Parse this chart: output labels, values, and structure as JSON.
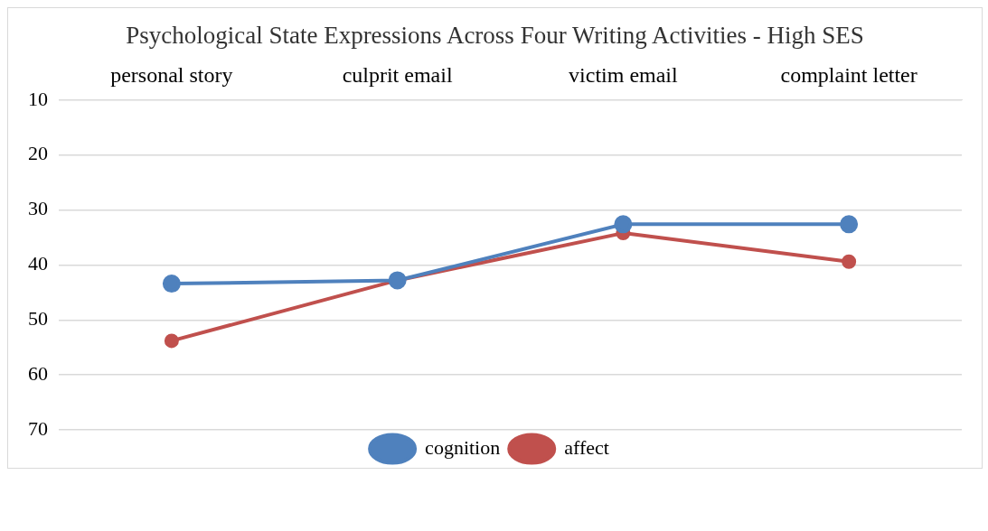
{
  "chart_data": {
    "type": "line",
    "title": "Psychological State Expressions Across Four Writing Activities - High SES",
    "categories": [
      "personal story",
      "culprit email",
      "victim email",
      "complaint letter"
    ],
    "series": [
      {
        "name": "cognition",
        "color": "#4f81bd",
        "values": [
          43.4,
          42.8,
          32.6,
          32.6
        ]
      },
      {
        "name": "affect",
        "color": "#c0504d",
        "values": [
          53.8,
          42.8,
          34.2,
          39.4
        ]
      }
    ],
    "ylim": [
      70,
      10
    ],
    "yticks": [
      10,
      20,
      30,
      40,
      50,
      60,
      70
    ],
    "grid": "y",
    "legend": "bottom",
    "marker": "circle",
    "line_style": "solid"
  }
}
